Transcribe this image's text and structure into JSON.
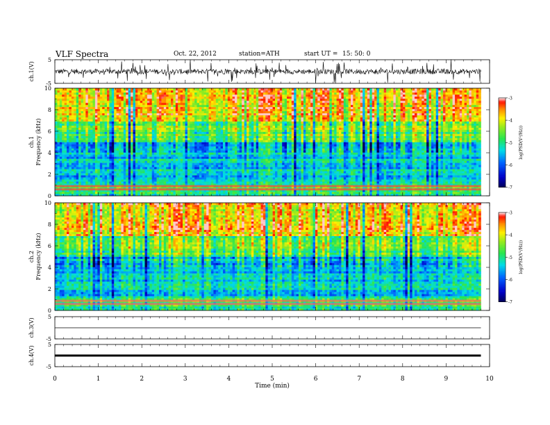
{
  "header": {
    "title": "VLF Spectra",
    "date": "Oct. 22, 2012",
    "station": "station=ATH",
    "start_label": "start UT =",
    "start_time": "15: 50: 0"
  },
  "chart_data": [
    {
      "type": "line",
      "title": "",
      "ylabel": "ch.1(V)",
      "ylim": [
        -5,
        5
      ],
      "yticks": [
        "5",
        "-5"
      ],
      "xlim": [
        0,
        10
      ],
      "description_values": {
        "mean": 0.0,
        "noise_amplitude": 1.0
      }
    },
    {
      "type": "heatmap",
      "ylabel": "ch.1\nFrequency (kHz)",
      "ylabel_top": "ch.1",
      "ylabel_bottom": "Frequency (kHz)",
      "ylim": [
        0,
        10
      ],
      "yticks": [
        "0",
        "2",
        "4",
        "6",
        "8",
        "10"
      ],
      "xlim": [
        0,
        9.8
      ],
      "colorbar": {
        "label": "log(PSD(V²/Hz))",
        "ticks": [
          "-3",
          "-4",
          "-5",
          "-6",
          "-7"
        ],
        "range": [
          -7,
          -3
        ]
      }
    },
    {
      "type": "heatmap",
      "ylabel_top": "ch.2",
      "ylabel_bottom": "Frequency (kHz)",
      "ylim": [
        0,
        10
      ],
      "yticks": [
        "0",
        "2",
        "4",
        "6",
        "8",
        "10"
      ],
      "xlim": [
        0,
        9.8
      ],
      "colorbar": {
        "label": "log(PSD(V²/Hz))",
        "ticks": [
          "-3",
          "-4",
          "-5",
          "-6",
          "-7"
        ],
        "range": [
          -7,
          -3
        ]
      }
    },
    {
      "type": "line",
      "ylabel": "ch.3(V)",
      "ylim": [
        -5,
        5
      ],
      "yticks": [
        "5",
        "-5"
      ],
      "values_flat": 0.0
    },
    {
      "type": "line",
      "ylabel": "ch.4(V)",
      "ylim": [
        -5,
        5
      ],
      "yticks": [
        "5",
        "-5"
      ],
      "values_flat": 0.0
    }
  ],
  "xaxis": {
    "label": "Time (min)",
    "ticks": [
      "0",
      "1",
      "2",
      "3",
      "4",
      "5",
      "6",
      "7",
      "8",
      "9",
      "10"
    ],
    "range": [
      0,
      10
    ]
  },
  "colors": {
    "axis": "#000000",
    "spectrum_low": "#000050",
    "spectrum_high": "#ff2000"
  }
}
